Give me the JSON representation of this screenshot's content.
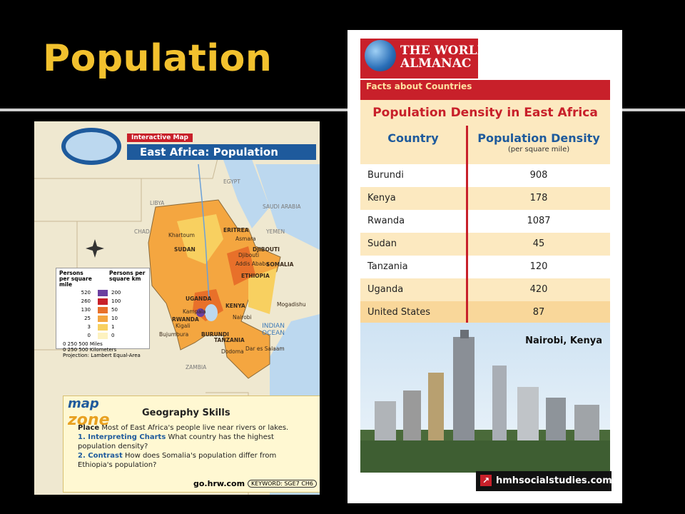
{
  "slide_title": "Population",
  "map": {
    "interactive_tag": "Interactive Map",
    "title": "East Africa: Population",
    "country_labels": [
      "LIBYA",
      "EGYPT",
      "SAUDI ARABIA",
      "CHAD",
      "YEMEN",
      "SUDAN",
      "ERITREA",
      "DJIBOUTI",
      "SOMALIA",
      "ETHIOPIA",
      "UGANDA",
      "KENYA",
      "RWANDA",
      "BURUNDI",
      "TANZANIA",
      "ZAMBIA"
    ],
    "city_labels": [
      "Khartoum",
      "Asmara",
      "Djibouti",
      "Addis Ababa",
      "Mogadishu",
      "Kampala",
      "Nairobi",
      "Kigali",
      "Bujumbura",
      "Dodoma",
      "Dar es Salaam"
    ],
    "ocean_label": "INDIAN OCEAN",
    "legend": {
      "header_left": "Persons per square mile",
      "header_right": "Persons per square km",
      "rows": [
        {
          "mi": "520",
          "km": "200",
          "color": "#6b3fa0"
        },
        {
          "mi": "260",
          "km": "100",
          "color": "#c8202a"
        },
        {
          "mi": "130",
          "km": "50",
          "color": "#e8702a"
        },
        {
          "mi": "25",
          "km": "10",
          "color": "#f4a640"
        },
        {
          "mi": "3",
          "km": "1",
          "color": "#f8d060"
        },
        {
          "mi": "0",
          "km": "0",
          "color": "#fdf2c0"
        }
      ]
    },
    "scale_miles": "0 250 500 Miles",
    "scale_km": "0 250 500 Kilometers",
    "projection": "Projection: Lambert Equal-Area",
    "mapzone_logo_top": "map",
    "mapzone_logo_bottom": "zone",
    "skills_title": "Geography Skills",
    "place_label": "Place",
    "place_text": "Most of East Africa's people live near rivers or lakes.",
    "q1_label": "1. Interpreting Charts",
    "q1_text": "What country has the highest population density?",
    "q2_label": "2. Contrast",
    "q2_text": "How does Somalia's population differ from Ethiopia's population?",
    "footer_url": "go.hrw.com",
    "footer_keyword": "KEYWORD: SGE7 CH6"
  },
  "almanac": {
    "brand_top": "THE WORLD",
    "brand_bottom": "ALMANAC",
    "brand_sub": "Facts about Countries",
    "table_title": "Population Density in East Africa",
    "col_country": "Country",
    "col_density": "Population Density",
    "col_density_sub": "(per square mile)",
    "rows": [
      {
        "country": "Burundi",
        "density": "908"
      },
      {
        "country": "Kenya",
        "density": "178"
      },
      {
        "country": "Rwanda",
        "density": "1087"
      },
      {
        "country": "Sudan",
        "density": "45"
      },
      {
        "country": "Tanzania",
        "density": "120"
      },
      {
        "country": "Uganda",
        "density": "420"
      },
      {
        "country": "United States",
        "density": "87"
      }
    ],
    "photo_caption": "Nairobi, Kenya",
    "footer_url": "hmhsocialstudies.com"
  }
}
